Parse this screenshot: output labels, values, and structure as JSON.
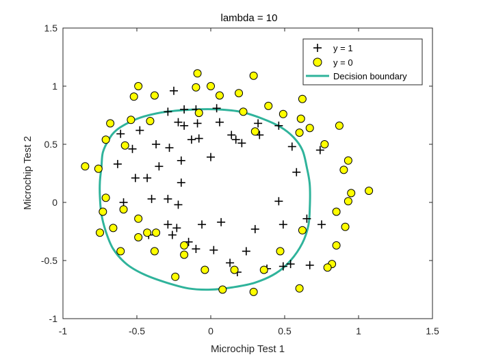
{
  "chart_data": {
    "type": "scatter",
    "title": "lambda = 10",
    "xlabel": "Microchip Test 1",
    "ylabel": "Microchip Test 2",
    "xlim": [
      -1,
      1.5
    ],
    "ylim": [
      -1,
      1.5
    ],
    "xticks": [
      -1,
      -0.5,
      0,
      0.5,
      1,
      1.5
    ],
    "yticks": [
      -1,
      -0.5,
      0,
      0.5,
      1,
      1.5
    ],
    "xtick_labels": [
      "-1",
      "-0.5",
      "0",
      "0.5",
      "1",
      "1.5"
    ],
    "ytick_labels": [
      "-1",
      "-0.5",
      "0",
      "0.5",
      "1",
      "1.5"
    ],
    "grid": false,
    "legend_position": "top-right",
    "colors": {
      "negative_fill": "#ffff00",
      "boundary": "#2fb39b",
      "positive": "#000000"
    },
    "legend": [
      {
        "label": "y = 1",
        "marker": "plus"
      },
      {
        "label": "y = 0",
        "marker": "circle"
      },
      {
        "label": "Decision boundary",
        "marker": "line"
      }
    ],
    "series": [
      {
        "name": "y = 1",
        "marker": "plus",
        "points": [
          [
            -0.25,
            0.96
          ],
          [
            -0.29,
            0.78
          ],
          [
            -0.18,
            0.8
          ],
          [
            -0.1,
            0.8
          ],
          [
            0.04,
            0.81
          ],
          [
            -0.61,
            0.59
          ],
          [
            -0.48,
            0.62
          ],
          [
            -0.22,
            0.69
          ],
          [
            -0.18,
            0.66
          ],
          [
            -0.09,
            0.68
          ],
          [
            0.06,
            0.69
          ],
          [
            0.14,
            0.58
          ],
          [
            0.32,
            0.68
          ],
          [
            0.46,
            0.66
          ],
          [
            -0.53,
            0.46
          ],
          [
            -0.37,
            0.5
          ],
          [
            -0.28,
            0.47
          ],
          [
            -0.13,
            0.54
          ],
          [
            -0.08,
            0.55
          ],
          [
            0.17,
            0.54
          ],
          [
            0.21,
            0.51
          ],
          [
            0.33,
            0.58
          ],
          [
            0.55,
            0.48
          ],
          [
            0.74,
            0.45
          ],
          [
            -0.63,
            0.33
          ],
          [
            -0.35,
            0.31
          ],
          [
            -0.2,
            0.36
          ],
          [
            -0.0,
            0.39
          ],
          [
            0.58,
            0.26
          ],
          [
            -0.51,
            0.21
          ],
          [
            -0.43,
            0.21
          ],
          [
            -0.2,
            0.17
          ],
          [
            -0.59,
            0.0
          ],
          [
            -0.4,
            0.03
          ],
          [
            -0.29,
            0.03
          ],
          [
            -0.22,
            -0.02
          ],
          [
            0.46,
            0.01
          ],
          [
            -0.29,
            -0.19
          ],
          [
            -0.23,
            -0.22
          ],
          [
            -0.06,
            -0.19
          ],
          [
            0.07,
            -0.17
          ],
          [
            0.3,
            -0.23
          ],
          [
            0.49,
            -0.19
          ],
          [
            0.65,
            -0.14
          ],
          [
            0.75,
            -0.19
          ],
          [
            -0.42,
            -0.28
          ],
          [
            -0.26,
            -0.28
          ],
          [
            -0.15,
            -0.34
          ],
          [
            -0.1,
            -0.4
          ],
          [
            0.02,
            -0.41
          ],
          [
            0.24,
            -0.42
          ],
          [
            0.49,
            -0.55
          ],
          [
            0.54,
            -0.53
          ],
          [
            0.67,
            -0.54
          ],
          [
            0.13,
            -0.52
          ],
          [
            0.18,
            -0.6
          ],
          [
            0.38,
            -0.57
          ]
        ]
      },
      {
        "name": "y = 0",
        "marker": "circle",
        "points": [
          [
            -0.09,
            1.11
          ],
          [
            0.29,
            1.09
          ],
          [
            -0.49,
            1.0
          ],
          [
            -0.1,
            0.99
          ],
          [
            0.0,
            1.0
          ],
          [
            -0.38,
            0.92
          ],
          [
            -0.52,
            0.91
          ],
          [
            0.06,
            0.92
          ],
          [
            0.19,
            0.94
          ],
          [
            0.62,
            0.89
          ],
          [
            -0.08,
            0.77
          ],
          [
            0.39,
            0.83
          ],
          [
            0.49,
            0.76
          ],
          [
            0.22,
            0.78
          ],
          [
            -0.68,
            0.68
          ],
          [
            -0.54,
            0.71
          ],
          [
            -0.41,
            0.7
          ],
          [
            0.61,
            0.72
          ],
          [
            0.67,
            0.64
          ],
          [
            0.87,
            0.66
          ],
          [
            -0.71,
            0.54
          ],
          [
            -0.58,
            0.49
          ],
          [
            0.3,
            0.61
          ],
          [
            0.77,
            0.5
          ],
          [
            0.6,
            0.6
          ],
          [
            -0.85,
            0.31
          ],
          [
            -0.76,
            0.29
          ],
          [
            0.9,
            0.28
          ],
          [
            0.93,
            0.36
          ],
          [
            -0.71,
            0.04
          ],
          [
            -0.59,
            -0.06
          ],
          [
            0.95,
            0.08
          ],
          [
            0.93,
            0.01
          ],
          [
            1.07,
            0.1
          ],
          [
            -0.73,
            -0.08
          ],
          [
            -0.66,
            -0.22
          ],
          [
            -0.49,
            -0.14
          ],
          [
            0.85,
            -0.08
          ],
          [
            0.91,
            -0.21
          ],
          [
            -0.75,
            -0.26
          ],
          [
            -0.49,
            -0.3
          ],
          [
            -0.43,
            -0.26
          ],
          [
            -0.37,
            -0.26
          ],
          [
            0.62,
            -0.24
          ],
          [
            0.85,
            -0.37
          ],
          [
            -0.18,
            -0.37
          ],
          [
            -0.38,
            -0.42
          ],
          [
            0.47,
            -0.42
          ],
          [
            -0.61,
            -0.42
          ],
          [
            -0.18,
            -0.45
          ],
          [
            0.82,
            -0.53
          ],
          [
            0.79,
            -0.56
          ],
          [
            0.36,
            -0.58
          ],
          [
            -0.04,
            -0.58
          ],
          [
            0.16,
            -0.58
          ],
          [
            0.6,
            -0.74
          ],
          [
            0.08,
            -0.75
          ],
          [
            0.29,
            -0.77
          ],
          [
            -0.24,
            -0.64
          ]
        ]
      }
    ],
    "decision_boundary": {
      "name": "Decision boundary",
      "points": [
        [
          -0.74,
          0.3
        ],
        [
          -0.73,
          0.43
        ],
        [
          -0.69,
          0.54
        ],
        [
          -0.64,
          0.62
        ],
        [
          -0.55,
          0.69
        ],
        [
          -0.45,
          0.74
        ],
        [
          -0.3,
          0.78
        ],
        [
          -0.1,
          0.8
        ],
        [
          0.05,
          0.8
        ],
        [
          0.2,
          0.78
        ],
        [
          0.35,
          0.72
        ],
        [
          0.47,
          0.65
        ],
        [
          0.56,
          0.56
        ],
        [
          0.62,
          0.45
        ],
        [
          0.65,
          0.3
        ],
        [
          0.67,
          0.15
        ],
        [
          0.67,
          -0.05
        ],
        [
          0.66,
          -0.2
        ],
        [
          0.62,
          -0.35
        ],
        [
          0.54,
          -0.5
        ],
        [
          0.44,
          -0.61
        ],
        [
          0.3,
          -0.69
        ],
        [
          0.15,
          -0.73
        ],
        [
          0.0,
          -0.75
        ],
        [
          -0.15,
          -0.74
        ],
        [
          -0.3,
          -0.69
        ],
        [
          -0.45,
          -0.62
        ],
        [
          -0.57,
          -0.53
        ],
        [
          -0.66,
          -0.4
        ],
        [
          -0.71,
          -0.25
        ],
        [
          -0.74,
          -0.1
        ],
        [
          -0.75,
          0.05
        ],
        [
          -0.75,
          0.18
        ],
        [
          -0.74,
          0.3
        ]
      ]
    }
  }
}
